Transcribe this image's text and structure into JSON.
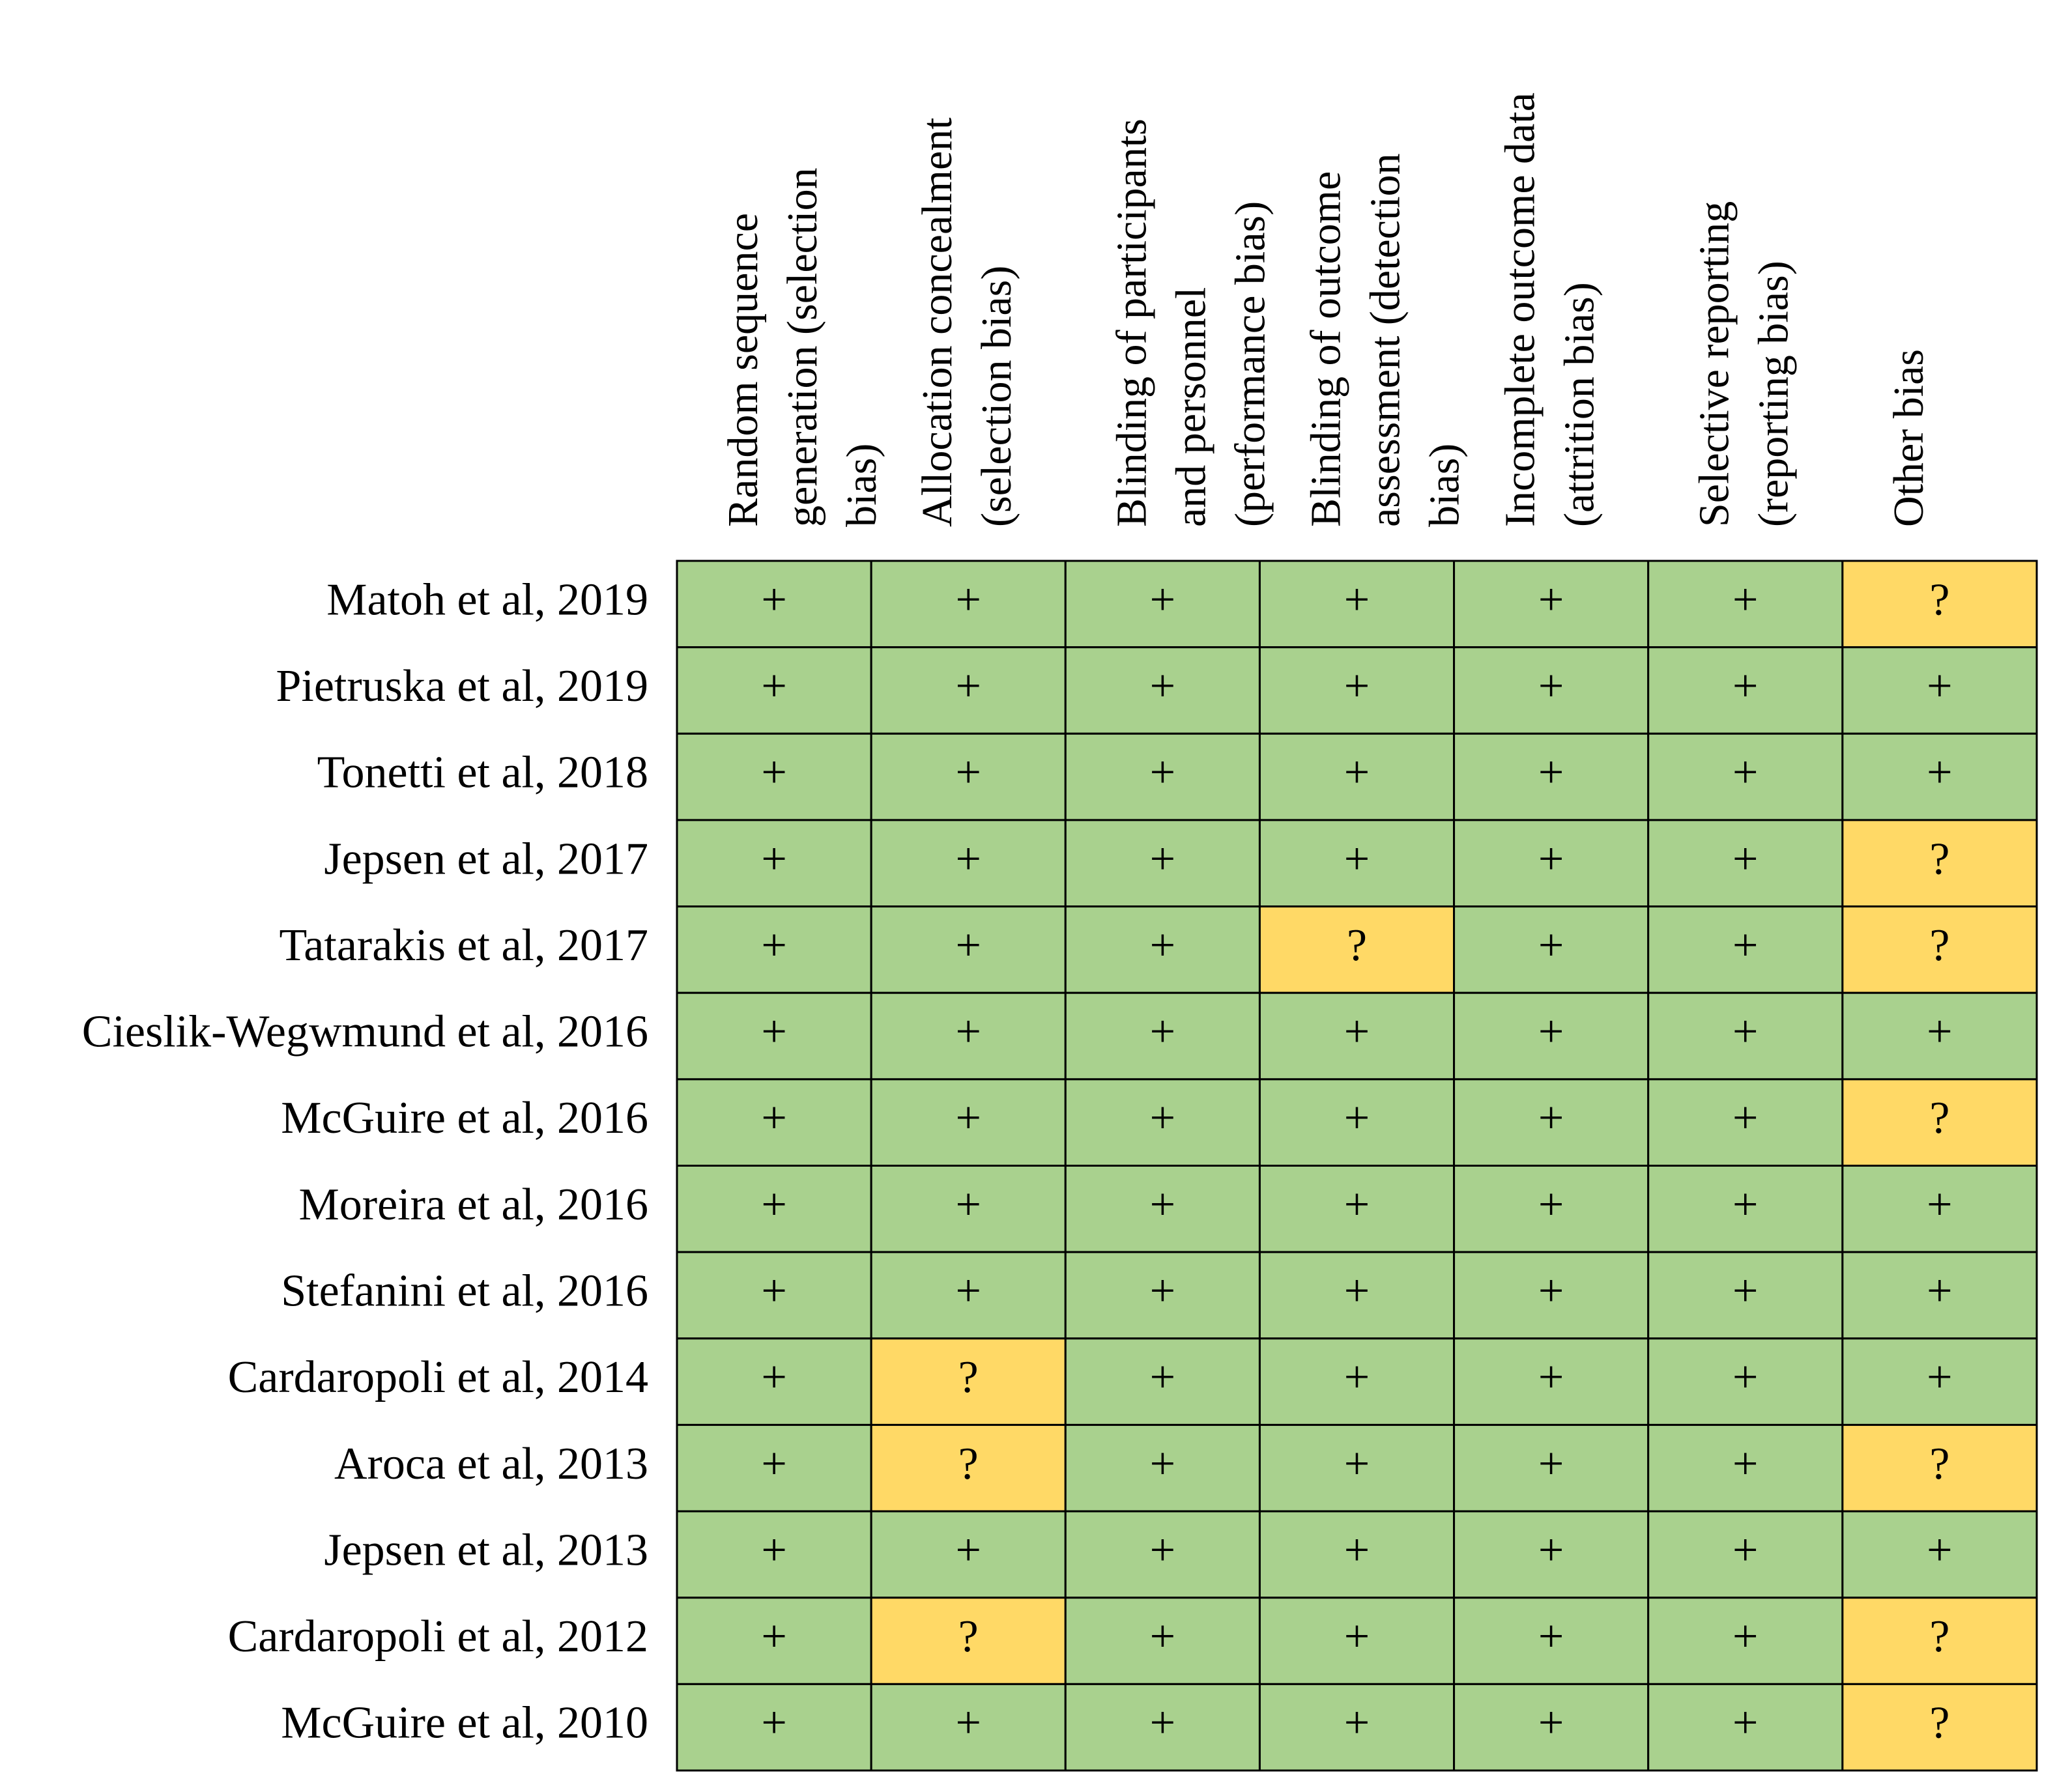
{
  "header": {
    "columns": [
      [
        "Random sequence",
        "generation (selection",
        "bias)"
      ],
      [
        "Allocation concealment",
        "(selection bias)"
      ],
      [
        "Blinding of participants",
        "and personnel",
        "(performance bias)"
      ],
      [
        "Blinding of outcome",
        "assessment (detection",
        "bias)"
      ],
      [
        "Incomplete outcome data",
        "(attrition bias)"
      ],
      [
        "Selective reporting",
        "(reporting bias)"
      ],
      [
        "Other bias"
      ]
    ]
  },
  "cell_colors": {
    "+": "#a9d18e",
    "?": "#ffd966"
  },
  "table": {
    "rows": [
      {
        "study": "Matoh et al, 2019",
        "cells": [
          "+",
          "+",
          "+",
          "+",
          "+",
          "+",
          "?"
        ]
      },
      {
        "study": "Pietruska et al, 2019",
        "cells": [
          "+",
          "+",
          "+",
          "+",
          "+",
          "+",
          "+"
        ]
      },
      {
        "study": "Tonetti et al, 2018",
        "cells": [
          "+",
          "+",
          "+",
          "+",
          "+",
          "+",
          "+"
        ]
      },
      {
        "study": "Jepsen et al, 2017",
        "cells": [
          "+",
          "+",
          "+",
          "+",
          "+",
          "+",
          "?"
        ]
      },
      {
        "study": "Tatarakis et al, 2017",
        "cells": [
          "+",
          "+",
          "+",
          "?",
          "+",
          "+",
          "?"
        ]
      },
      {
        "study": "Cieslik-Wegwmund et al, 2016",
        "cells": [
          "+",
          "+",
          "+",
          "+",
          "+",
          "+",
          "+"
        ]
      },
      {
        "study": "McGuire et al, 2016",
        "cells": [
          "+",
          "+",
          "+",
          "+",
          "+",
          "+",
          "?"
        ]
      },
      {
        "study": "Moreira et al, 2016",
        "cells": [
          "+",
          "+",
          "+",
          "+",
          "+",
          "+",
          "+"
        ]
      },
      {
        "study": "Stefanini et al, 2016",
        "cells": [
          "+",
          "+",
          "+",
          "+",
          "+",
          "+",
          "+"
        ]
      },
      {
        "study": "Cardaropoli et al, 2014",
        "cells": [
          "+",
          "?",
          "+",
          "+",
          "+",
          "+",
          "+"
        ]
      },
      {
        "study": "Aroca et al, 2013",
        "cells": [
          "+",
          "?",
          "+",
          "+",
          "+",
          "+",
          "?"
        ]
      },
      {
        "study": "Jepsen et al, 2013",
        "cells": [
          "+",
          "+",
          "+",
          "+",
          "+",
          "+",
          "+"
        ]
      },
      {
        "study": "Cardaropoli et al, 2012",
        "cells": [
          "+",
          "?",
          "+",
          "+",
          "+",
          "+",
          "?"
        ]
      },
      {
        "study": "McGuire et al, 2010",
        "cells": [
          "+",
          "+",
          "+",
          "+",
          "+",
          "+",
          "?"
        ]
      }
    ]
  }
}
